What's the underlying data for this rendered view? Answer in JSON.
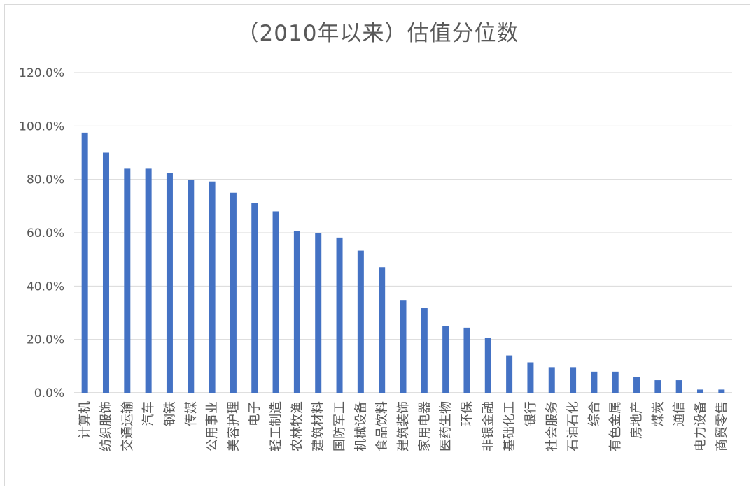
{
  "chart_data": {
    "type": "bar",
    "title": "（2010年以来）估值分位数",
    "xlabel": "",
    "ylabel": "",
    "ylim": [
      0,
      120
    ],
    "y_ticks": [
      "0.0%",
      "20.0%",
      "40.0%",
      "60.0%",
      "80.0%",
      "100.0%",
      "120.0%"
    ],
    "grid": true,
    "legend": "none",
    "bar_color": "#4472c4",
    "categories": [
      "计算机",
      "纺织服饰",
      "交通运输",
      "汽车",
      "钢铁",
      "传媒",
      "公用事业",
      "美容护理",
      "电子",
      "轻工制造",
      "农林牧渔",
      "建筑材料",
      "国防军工",
      "机械设备",
      "食品饮料",
      "建筑装饰",
      "家用电器",
      "医药生物",
      "环保",
      "非银金融",
      "基础化工",
      "银行",
      "社会服务",
      "石油石化",
      "综合",
      "有色金属",
      "房地产",
      "煤炭",
      "通信",
      "电力设备",
      "商贸零售"
    ],
    "values": [
      97.5,
      90.0,
      84.0,
      84.0,
      82.3,
      79.8,
      79.2,
      75.0,
      71.1,
      68.0,
      60.7,
      60.0,
      58.2,
      53.3,
      47.1,
      34.8,
      31.7,
      25.0,
      24.4,
      20.7,
      14.0,
      11.4,
      9.6,
      9.6,
      7.9,
      7.9,
      6.0,
      4.7,
      4.7,
      1.2,
      1.2
    ]
  }
}
